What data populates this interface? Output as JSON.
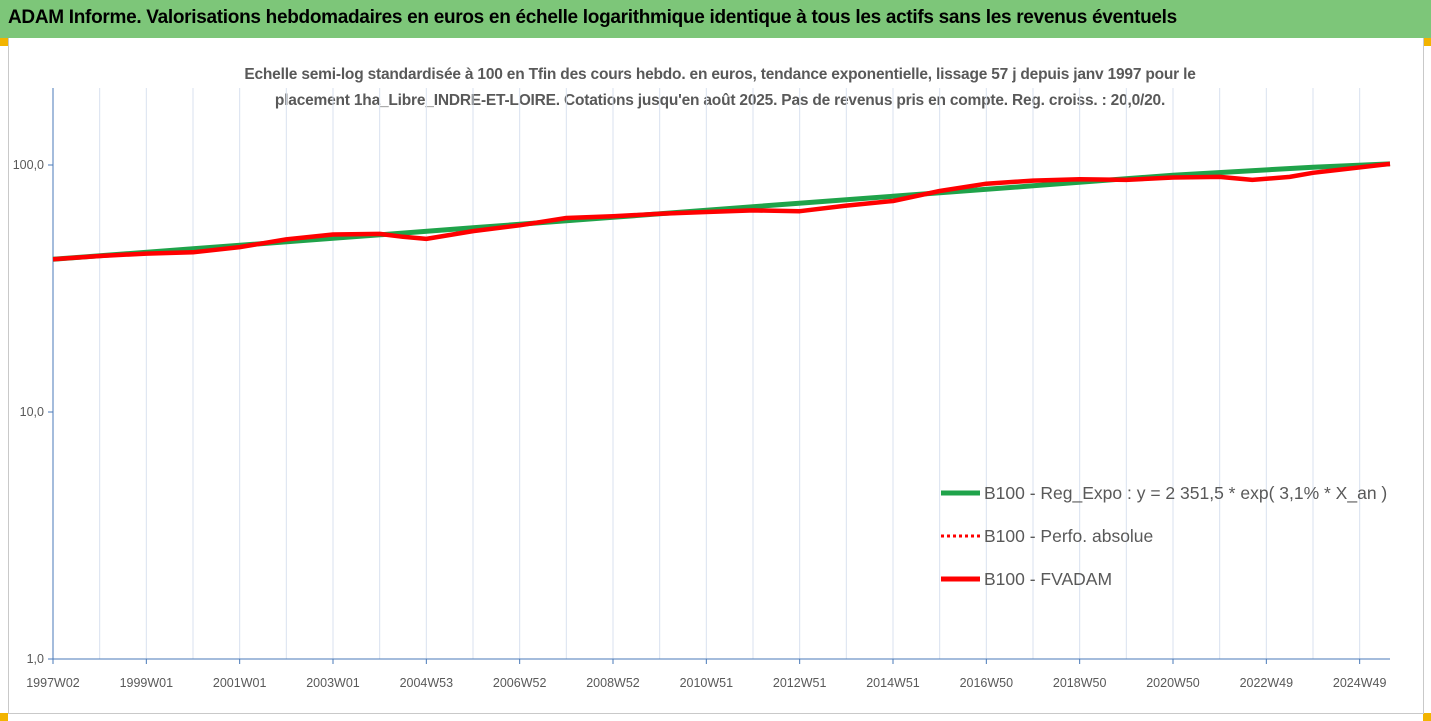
{
  "header": {
    "title": "ADAM Informe. Valorisations hebdomadaires en euros en échelle logarithmique identique à tous les actifs sans les revenus éventuels",
    "band_color": "#7dc679"
  },
  "chart_data": {
    "type": "line",
    "title_lines": [
      "Echelle semi-log standardisée à 100 en Tfin des cours hebdo. en euros, tendance exponentielle, lissage 57 j depuis janv 1997 pour le",
      "placement 1ha_Libre_INDRE-ET-LOIRE. Cotations jusqu'en août 2025. Pas de revenus pris en compte. Reg. croiss. : 20,0/20."
    ],
    "y_scale": "log",
    "ylim": [
      1,
      200
    ],
    "y_ticks": [
      {
        "value": 1,
        "label": "1,0"
      },
      {
        "value": 10,
        "label": "10,0"
      },
      {
        "value": 100,
        "label": "100,0"
      }
    ],
    "x_range": [
      1997.0,
      2025.65
    ],
    "x_tick_labels": [
      {
        "x": 1997.0,
        "label": "1997W02"
      },
      {
        "x": 1999.0,
        "label": "1999W01"
      },
      {
        "x": 2001.0,
        "label": "2001W01"
      },
      {
        "x": 2003.0,
        "label": "2003W01"
      },
      {
        "x": 2005.0,
        "label": "2004W53"
      },
      {
        "x": 2007.0,
        "label": "2006W52"
      },
      {
        "x": 2009.0,
        "label": "2008W52"
      },
      {
        "x": 2011.0,
        "label": "2010W51"
      },
      {
        "x": 2013.0,
        "label": "2012W51"
      },
      {
        "x": 2015.0,
        "label": "2014W51"
      },
      {
        "x": 2017.0,
        "label": "2016W50"
      },
      {
        "x": 2019.0,
        "label": "2018W50"
      },
      {
        "x": 2021.0,
        "label": "2020W50"
      },
      {
        "x": 2023.0,
        "label": "2022W49"
      },
      {
        "x": 2025.0,
        "label": "2024W49"
      }
    ],
    "grid": "vertical",
    "legend_position": "right-middle",
    "series": [
      {
        "name": "B100 - Reg_Expo : y = 2 351,5 * exp( 3,1% *  X_an )",
        "color": "#1fa34a",
        "style": "solid",
        "points": [
          [
            1997.0,
            41.5
          ],
          [
            2000.0,
            45.8
          ],
          [
            2003.0,
            50.5
          ],
          [
            2006.0,
            55.7
          ],
          [
            2009.0,
            61.4
          ],
          [
            2012.0,
            67.8
          ],
          [
            2015.0,
            74.7
          ],
          [
            2018.0,
            82.4
          ],
          [
            2021.0,
            90.9
          ],
          [
            2024.0,
            98.0
          ],
          [
            2025.65,
            101.0
          ]
        ]
      },
      {
        "name": "B100 - Perfo. absolue",
        "color": "#ff0000",
        "style": "dotted",
        "points": [
          [
            1997.0,
            41.5
          ],
          [
            1998.0,
            42.8
          ],
          [
            1999.0,
            43.8
          ],
          [
            2000.0,
            44.3
          ],
          [
            2001.0,
            46.5
          ],
          [
            2002.0,
            50.0
          ],
          [
            2003.0,
            52.3
          ],
          [
            2004.0,
            52.6
          ],
          [
            2004.5,
            51.2
          ],
          [
            2005.0,
            50.2
          ],
          [
            2006.0,
            54.0
          ],
          [
            2007.0,
            57.0
          ],
          [
            2008.0,
            61.0
          ],
          [
            2009.0,
            62.0
          ],
          [
            2010.0,
            63.5
          ],
          [
            2011.0,
            64.5
          ],
          [
            2012.0,
            65.5
          ],
          [
            2013.0,
            65.0
          ],
          [
            2014.0,
            68.5
          ],
          [
            2015.0,
            71.5
          ],
          [
            2016.0,
            78.5
          ],
          [
            2017.0,
            84.0
          ],
          [
            2018.0,
            86.5
          ],
          [
            2019.0,
            87.5
          ],
          [
            2020.0,
            87.0
          ],
          [
            2021.0,
            89.0
          ],
          [
            2022.0,
            89.5
          ],
          [
            2022.7,
            87.0
          ],
          [
            2023.5,
            89.5
          ],
          [
            2024.0,
            93.0
          ],
          [
            2025.65,
            101.0
          ]
        ]
      },
      {
        "name": "B100 - FVADAM",
        "color": "#ff0000",
        "style": "solid",
        "points": [
          [
            1997.0,
            41.5
          ],
          [
            1998.0,
            42.8
          ],
          [
            1999.0,
            43.8
          ],
          [
            2000.0,
            44.3
          ],
          [
            2001.0,
            46.5
          ],
          [
            2002.0,
            50.0
          ],
          [
            2003.0,
            52.3
          ],
          [
            2004.0,
            52.6
          ],
          [
            2004.5,
            51.2
          ],
          [
            2005.0,
            50.2
          ],
          [
            2006.0,
            54.0
          ],
          [
            2007.0,
            57.0
          ],
          [
            2008.0,
            61.0
          ],
          [
            2009.0,
            62.0
          ],
          [
            2010.0,
            63.5
          ],
          [
            2011.0,
            64.5
          ],
          [
            2012.0,
            65.5
          ],
          [
            2013.0,
            65.0
          ],
          [
            2014.0,
            68.5
          ],
          [
            2015.0,
            71.5
          ],
          [
            2016.0,
            78.5
          ],
          [
            2017.0,
            84.0
          ],
          [
            2018.0,
            86.5
          ],
          [
            2019.0,
            87.5
          ],
          [
            2020.0,
            87.0
          ],
          [
            2021.0,
            89.0
          ],
          [
            2022.0,
            89.5
          ],
          [
            2022.7,
            87.0
          ],
          [
            2023.5,
            89.5
          ],
          [
            2024.0,
            93.0
          ],
          [
            2025.65,
            101.0
          ]
        ]
      }
    ]
  }
}
